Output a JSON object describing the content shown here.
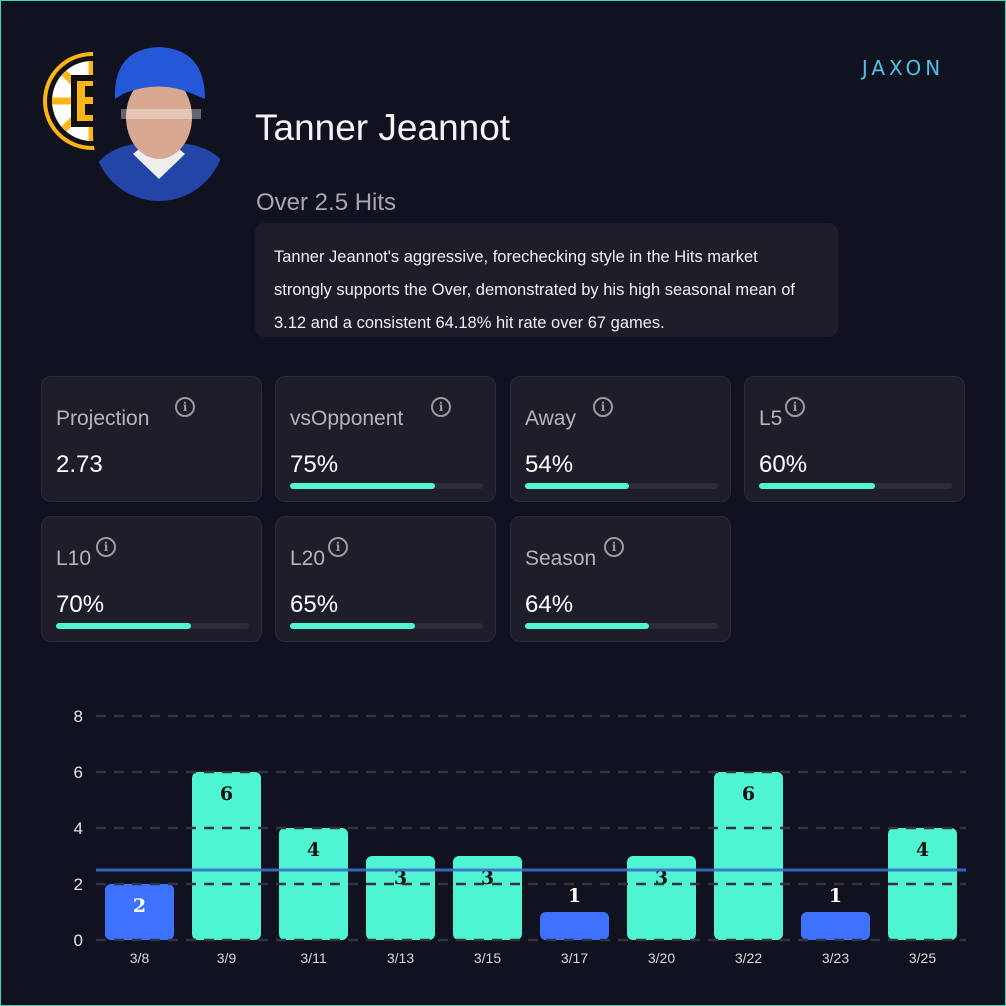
{
  "player": {
    "name": "Tanner Jeannot",
    "market": "Over 2.5 Hits",
    "description": "Tanner Jeannot's aggressive, forechecking style in the Hits market strongly supports the Over, demonstrated by his high seasonal mean of 3.12 and a consistent 64.18% hit rate over 67 games."
  },
  "brand": "JAXON",
  "stats": [
    {
      "label": "Projection",
      "value": "2.73"
    },
    {
      "label": "vsOpponent",
      "value": "75%",
      "pct": 75
    },
    {
      "label": "Away",
      "value": "54%",
      "pct": 54
    },
    {
      "label": "L5",
      "value": "60%",
      "pct": 60
    },
    {
      "label": "L10",
      "value": "70%",
      "pct": 70
    },
    {
      "label": "L20",
      "value": "65%",
      "pct": 65
    },
    {
      "label": "Season",
      "value": "64%",
      "pct": 64
    }
  ],
  "colors": {
    "over": "#4ff5d2",
    "under": "#3d72ff",
    "line": "#2f5fc0",
    "bg": "#10121f"
  },
  "chart_data": {
    "type": "bar",
    "categories": [
      "3/8",
      "3/9",
      "3/11",
      "3/13",
      "3/15",
      "3/17",
      "3/20",
      "3/22",
      "3/23",
      "3/25"
    ],
    "values": [
      2,
      6,
      4,
      3,
      3,
      1,
      3,
      6,
      1,
      4
    ],
    "threshold": 2.5,
    "ylim": [
      0,
      8
    ],
    "yticks": [
      0,
      2,
      4,
      6,
      8
    ],
    "grid": true
  }
}
